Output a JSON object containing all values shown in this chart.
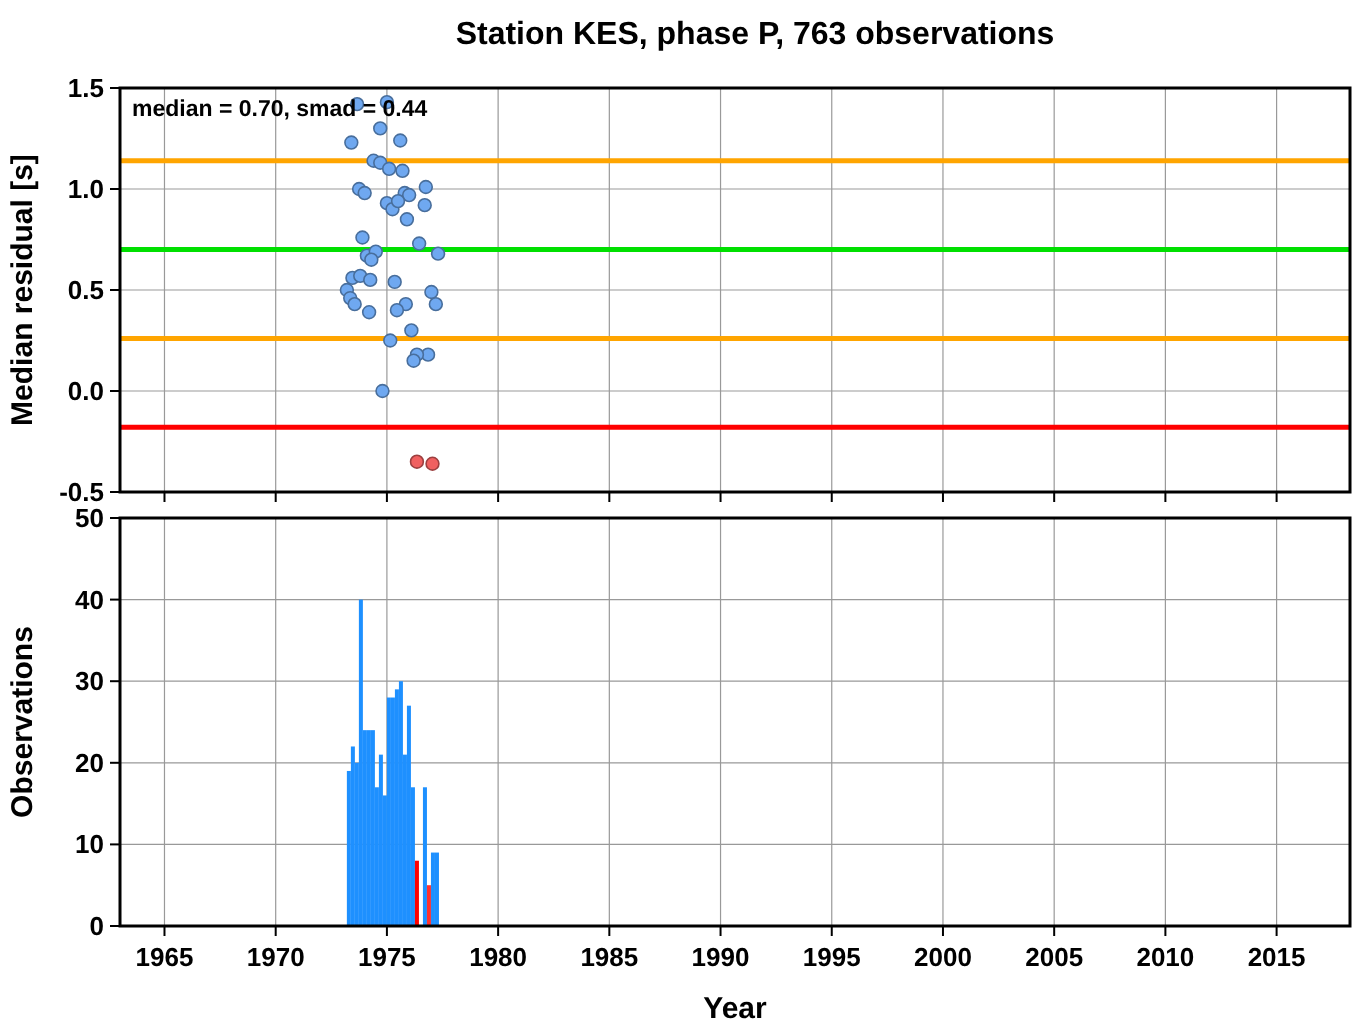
{
  "chart_data": [
    {
      "type": "scatter",
      "title": "Station KES, phase P, 763 observations",
      "ylabel": "Median residual [s]",
      "series": [
        {
          "color": "#6fa8f0",
          "x": [
            1973.66,
            1975.0,
            1974.7,
            1973.4,
            1975.6,
            1974.4,
            1974.7,
            1975.1,
            1975.7,
            1973.75,
            1974.0,
            1975.8,
            1976.75,
            1976.0,
            1975.0,
            1975.25,
            1975.5,
            1976.7,
            1975.9,
            1973.9,
            1976.45,
            1974.1,
            1974.5,
            1974.3,
            1977.3,
            1973.45,
            1973.8,
            1974.25,
            1975.35,
            1973.2,
            1973.35,
            1973.55,
            1977.0,
            1975.85,
            1977.2,
            1975.45,
            1974.2,
            1976.1,
            1975.15,
            1976.85,
            1976.35,
            1976.2,
            1974.8
          ],
          "values": [
            1.42,
            1.43,
            1.3,
            1.23,
            1.24,
            1.14,
            1.13,
            1.1,
            1.09,
            1.0,
            0.98,
            0.98,
            1.01,
            0.97,
            0.93,
            0.9,
            0.94,
            0.92,
            0.85,
            0.76,
            0.73,
            0.67,
            0.69,
            0.65,
            0.68,
            0.56,
            0.57,
            0.55,
            0.54,
            0.5,
            0.46,
            0.43,
            0.49,
            0.43,
            0.43,
            0.4,
            0.39,
            0.3,
            0.25,
            0.18,
            0.18,
            0.15,
            0.0
          ]
        },
        {
          "color": "#f06060",
          "x": [
            1976.35,
            1977.05
          ],
          "values": [
            -0.35,
            -0.36
          ]
        }
      ],
      "xlim": [
        1963,
        2018.3
      ],
      "xticks": [
        1965,
        1970,
        1975,
        1980,
        1985,
        1990,
        1995,
        2000,
        2005,
        2010,
        2015
      ],
      "ylim": [
        -0.5,
        1.5
      ],
      "yticks": [
        {
          "value": -0.5,
          "label": "-0.5"
        },
        {
          "value": 0,
          "label": "0.0"
        },
        {
          "value": 0.5,
          "label": "0.5"
        },
        {
          "value": 1,
          "label": "1.0"
        },
        {
          "value": 1.5,
          "label": "1.5"
        }
      ],
      "ref_lines": [
        {
          "axis": "y",
          "value": 1.14,
          "color": "#ffa500"
        },
        {
          "axis": "y",
          "value": 0.7,
          "color": "#00e000"
        },
        {
          "axis": "y",
          "value": 0.26,
          "color": "#ffa500"
        },
        {
          "axis": "y",
          "value": -0.18,
          "color": "#ff0000"
        }
      ],
      "annotations": [
        "median = 0.70, smad = 0.44"
      ],
      "marker": "circle",
      "grid": true,
      "tick_labels": "y"
    },
    {
      "type": "histogram",
      "xlabel": "Year",
      "ylabel": "Observations",
      "bins": [
        1973.2,
        1973.38,
        1973.56,
        1973.74,
        1973.92,
        1974.1,
        1974.28,
        1974.46,
        1974.64,
        1974.82,
        1975,
        1975.18,
        1975.36,
        1975.54,
        1975.72,
        1975.9,
        1976.08,
        1976.26,
        1976.44,
        1976.62,
        1976.8,
        1976.98,
        1977.16,
        1977.34
      ],
      "values": [
        19,
        22,
        20,
        40,
        24,
        24,
        24,
        17,
        21,
        16,
        28,
        28,
        29,
        30,
        21,
        27,
        17,
        8,
        0,
        17,
        5,
        9,
        9
      ],
      "colors": [
        "#1e90ff",
        "#1e90ff",
        "#1e90ff",
        "#1e90ff",
        "#1e90ff",
        "#1e90ff",
        "#1e90ff",
        "#1e90ff",
        "#1e90ff",
        "#1e90ff",
        "#1e90ff",
        "#1e90ff",
        "#1e90ff",
        "#1e90ff",
        "#1e90ff",
        "#1e90ff",
        "#1e90ff",
        "#ff0000",
        "#1e90ff",
        "#1e90ff",
        "#ff3030",
        "#1e90ff",
        "#1e90ff"
      ],
      "xlim": [
        1963,
        2018.3
      ],
      "xticks": [
        1965,
        1970,
        1975,
        1980,
        1985,
        1990,
        1995,
        2000,
        2005,
        2010,
        2015
      ],
      "ylim": [
        0,
        50
      ],
      "yticks": [
        0,
        10,
        20,
        30,
        40,
        50
      ],
      "grid": true
    }
  ]
}
